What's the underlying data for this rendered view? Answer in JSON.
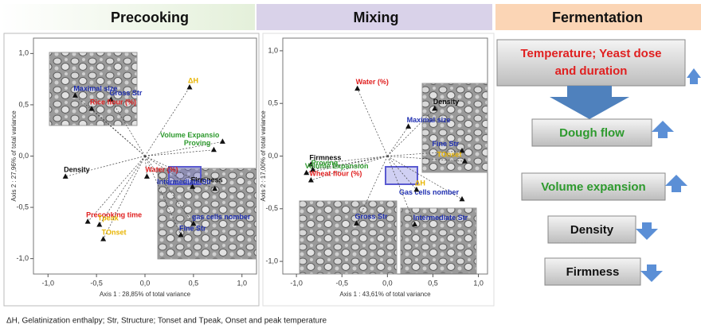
{
  "header": {
    "precooking": "Precooking",
    "mixing": "Mixing",
    "fermentation": "Fermentation"
  },
  "chart_data": [
    {
      "type": "scatter",
      "xlabel": "Axis 1 : 28,85% of total variance",
      "ylabel": "Axis 2 : 27,96% of total variance",
      "xlim": [
        -1.15,
        1.15
      ],
      "ylim": [
        -1.15,
        1.15
      ],
      "xticks": [
        {
          "value": -1,
          "label": "-1,0"
        },
        {
          "value": -0.5,
          "label": "-0,5"
        },
        {
          "value": 0,
          "label": "0,0"
        },
        {
          "value": 0.5,
          "label": "0,5"
        },
        {
          "value": 1,
          "label": "1,0"
        }
      ],
      "yticks": [
        {
          "value": -1,
          "label": "-1,0"
        },
        {
          "value": -0.5,
          "label": "-0,5"
        },
        {
          "value": 0,
          "label": "0,0"
        },
        {
          "value": 0.5,
          "label": "0,5"
        },
        {
          "value": 1,
          "label": "1,0"
        }
      ],
      "points": [
        {
          "label": "ΔH",
          "x": 0.46,
          "y": 0.67,
          "color": "#e8b400"
        },
        {
          "label": "Volume Expansio",
          "x": 0.8,
          "y": 0.14,
          "color": "#2e9a2e"
        },
        {
          "label": "Proving",
          "x": 0.71,
          "y": 0.06,
          "color": "#2e9a2e"
        },
        {
          "label": "Maximal size",
          "x": -0.72,
          "y": 0.59,
          "color": "#1f2fb0"
        },
        {
          "label": "Gross Str",
          "x": -0.35,
          "y": 0.55,
          "color": "#1f2fb0"
        },
        {
          "label": "Rice flour (%)",
          "x": -0.55,
          "y": 0.46,
          "color": "#e02020"
        },
        {
          "label": "Density",
          "x": -0.82,
          "y": -0.2,
          "color": "#111111"
        },
        {
          "label": "Water (%)",
          "x": 0.02,
          "y": -0.2,
          "color": "#e02020"
        },
        {
          "label": "Firmness",
          "x": 0.49,
          "y": -0.3,
          "color": "#111111"
        },
        {
          "label": "Intermediate Str",
          "x": 0.72,
          "y": -0.32,
          "color": "#1f2fb0"
        },
        {
          "label": "gas cells nomber",
          "x": 0.5,
          "y": -0.66,
          "color": "#1f2fb0"
        },
        {
          "label": "Fine Str",
          "x": 0.37,
          "y": -0.77,
          "color": "#1f2fb0"
        },
        {
          "label": "Precooking time",
          "x": -0.59,
          "y": -0.64,
          "color": "#e02020"
        },
        {
          "label": "Tpeak",
          "x": -0.47,
          "y": -0.67,
          "color": "#e8b400"
        },
        {
          "label": "TOnset",
          "x": -0.43,
          "y": -0.81,
          "color": "#e8b400"
        }
      ]
    },
    {
      "type": "scatter",
      "xlabel": "Axis 1 : 43,61% of total variance",
      "ylabel": "Axis 2 : 17,00% of total variance",
      "xlim": [
        -1.15,
        1.1
      ],
      "ylim": [
        -1.12,
        1.12
      ],
      "xticks": [
        {
          "value": -1,
          "label": "-1,0"
        },
        {
          "value": -0.5,
          "label": "-0,5"
        },
        {
          "value": 0,
          "label": "0,0"
        },
        {
          "value": 0.5,
          "label": "0,5"
        },
        {
          "value": 1,
          "label": "1,0"
        }
      ],
      "yticks": [
        {
          "value": -1,
          "label": "-1,0"
        },
        {
          "value": -0.5,
          "label": "-0,5"
        },
        {
          "value": 0,
          "label": "0,0"
        },
        {
          "value": 0.5,
          "label": "0,5"
        },
        {
          "value": 1,
          "label": "1,0"
        }
      ],
      "points": [
        {
          "label": "Water (%)",
          "x": -0.33,
          "y": 0.64,
          "color": "#e02020"
        },
        {
          "label": "Density",
          "x": 0.52,
          "y": 0.45,
          "color": "#111111"
        },
        {
          "label": "Maximal size",
          "x": 0.23,
          "y": 0.28,
          "color": "#1f2fb0"
        },
        {
          "label": "Fine Str",
          "x": 0.82,
          "y": 0.05,
          "color": "#1f2fb0"
        },
        {
          "label": "TOnset",
          "x": 0.85,
          "y": -0.05,
          "color": "#e8b400"
        },
        {
          "label": "Gas cells nomber",
          "x": 0.82,
          "y": -0.41,
          "color": "#1f2fb0"
        },
        {
          "label": "ΔH",
          "x": 0.32,
          "y": -0.32,
          "color": "#e8b400"
        },
        {
          "label": "Intermediate Str",
          "x": 0.3,
          "y": -0.65,
          "color": "#1f2fb0"
        },
        {
          "label": "Gross Str",
          "x": -0.34,
          "y": -0.64,
          "color": "#1f2fb0"
        },
        {
          "label": "Firmness",
          "x": -0.84,
          "y": -0.08,
          "color": "#111111"
        },
        {
          "label": "Volume Expansion",
          "x": -0.89,
          "y": -0.16,
          "color": "#2e9a2e"
        },
        {
          "label": "Proving",
          "x": -0.82,
          "y": -0.13,
          "color": "#2e9a2e"
        },
        {
          "label": "Wheat flour (%)",
          "x": -0.84,
          "y": -0.23,
          "color": "#e02020"
        }
      ]
    }
  ],
  "fermentation": {
    "driver": [
      "Temperature; Yeast dose",
      "and duration"
    ],
    "effects": [
      {
        "label": "Dough flow",
        "direction": "up",
        "color": "#2e9a2e"
      },
      {
        "label": "Volume expansion",
        "direction": "up",
        "color": "#2e9a2e"
      },
      {
        "label": "Density",
        "direction": "down",
        "color": "#111111"
      },
      {
        "label": "Firmness",
        "direction": "down",
        "color": "#111111"
      }
    ]
  },
  "footnote": "ΔH, Gelatinization enthalpy;  Str, Structure; Tonset and Tpeak, Onset and peak temperature"
}
